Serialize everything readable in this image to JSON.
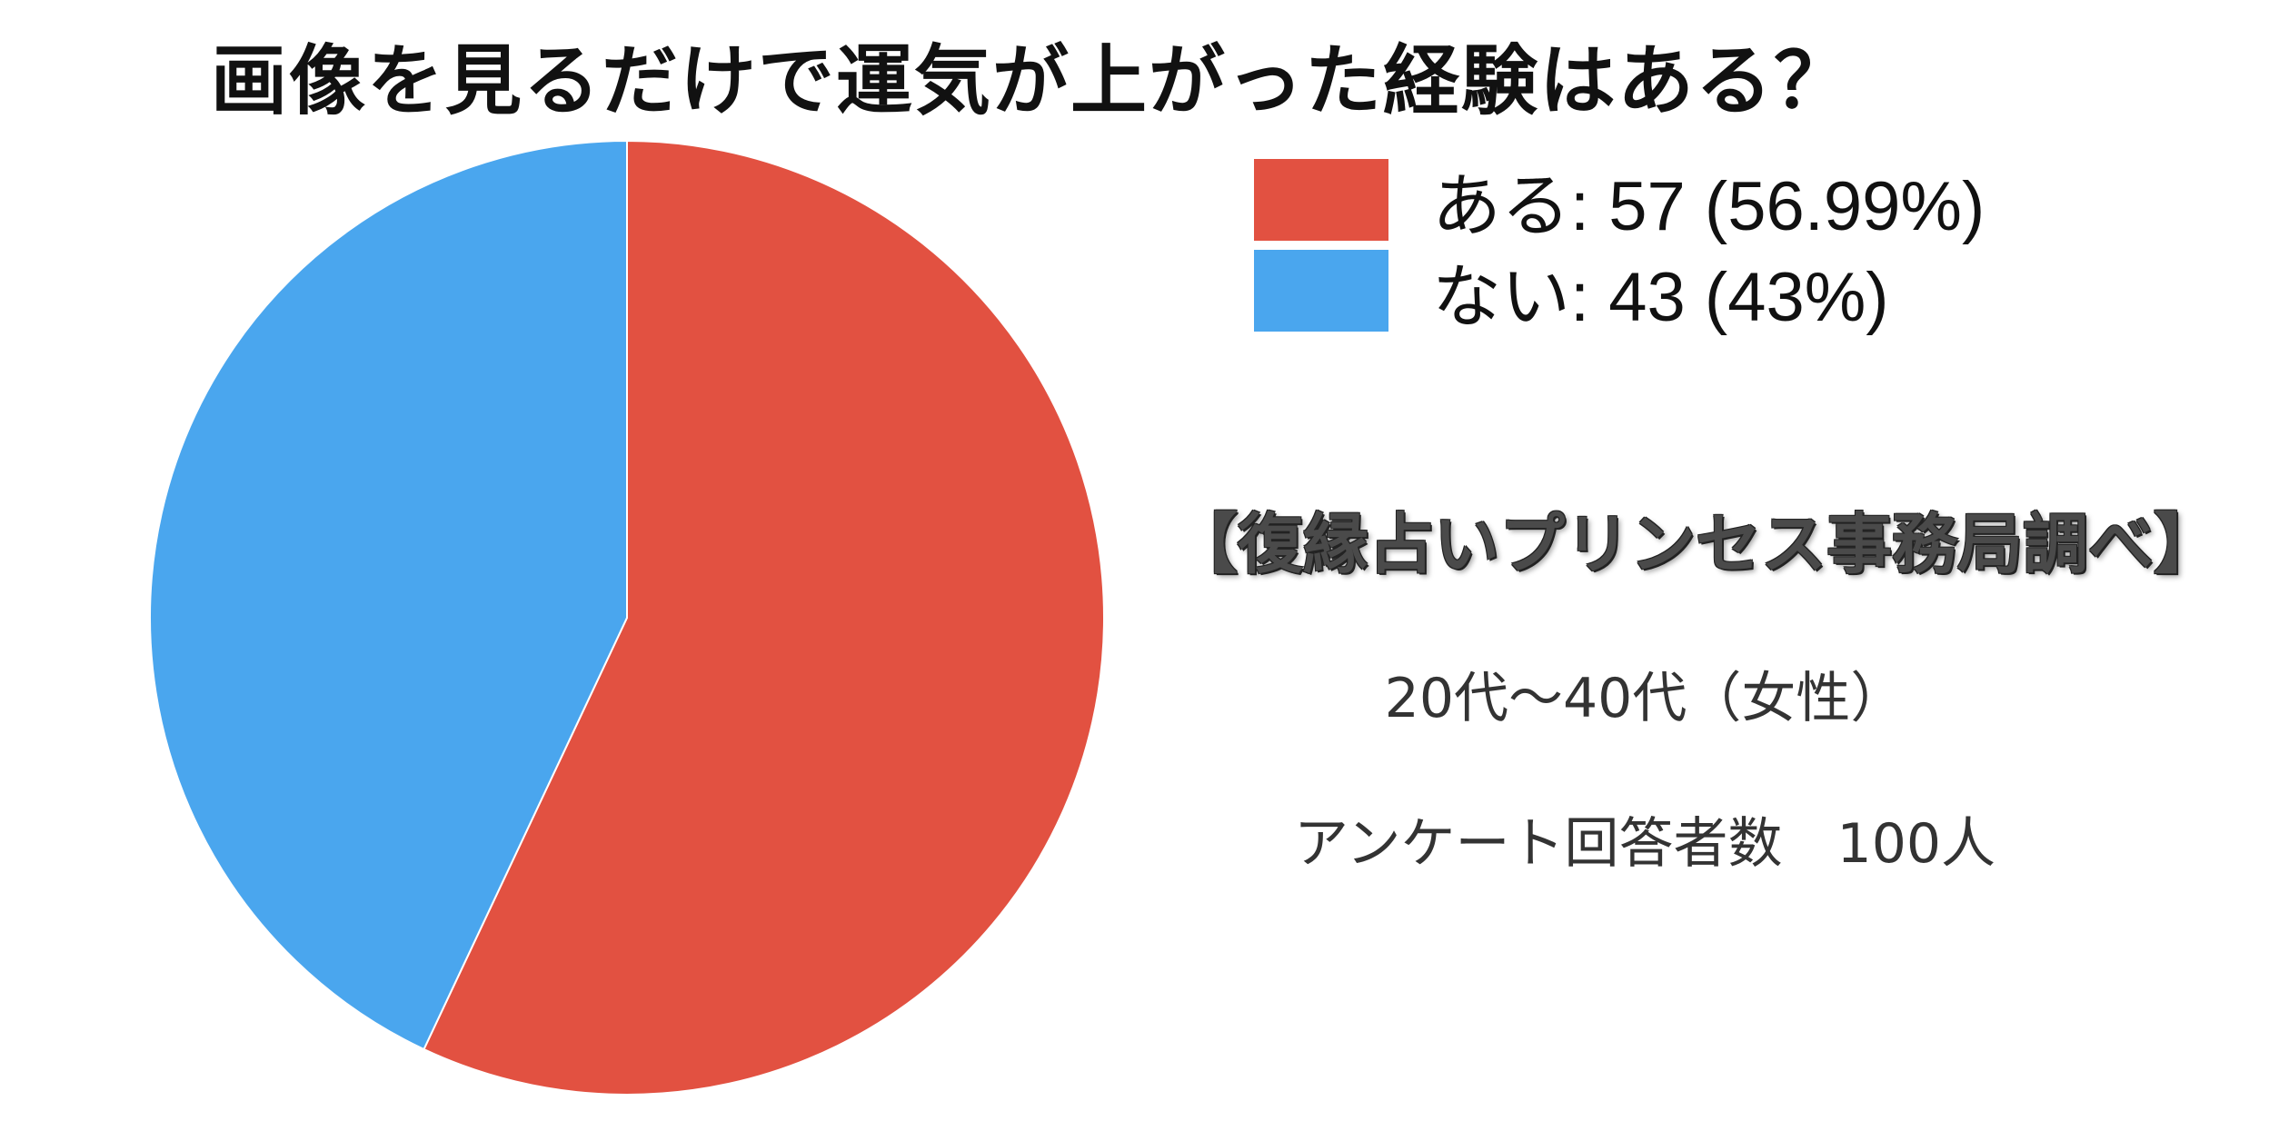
{
  "chart_data": {
    "type": "pie",
    "title": "画像を見るだけで運気が上がった経験はある？",
    "slices": [
      {
        "label": "ある",
        "value": 57,
        "percent": "56.99%",
        "legend_text": "ある: 57 (56.99%)",
        "color": "#e25141"
      },
      {
        "label": "ない",
        "value": 43,
        "percent": "43%",
        "legend_text": "ない: 43 (43%)",
        "color": "#4aa6ee"
      }
    ],
    "start_angle_deg": 0,
    "direction": "clockwise",
    "legend_position": "top-right"
  },
  "annotations": {
    "source": "【復縁占いプリンセス事務局調べ】",
    "age_group": "20代〜40代（女性）",
    "respondents": "アンケート回答者数　100人"
  }
}
